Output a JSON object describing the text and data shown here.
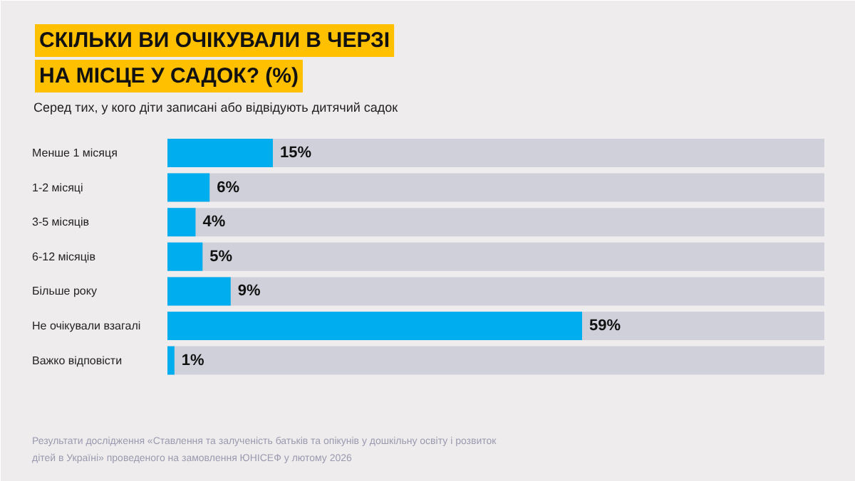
{
  "chart_data": {
    "type": "bar",
    "orientation": "horizontal",
    "title": "СКІЛЬКИ ВИ ОЧІКУВАЛИ В ЧЕРЗІ\nНА МІСЦЕ У САДОК? (%)",
    "subtitle": "Серед тих, у кого діти записані або відвідують дитячий садок",
    "categories": [
      "Менше 1 місяця",
      "1-2 місяці",
      "3-5 місяців",
      "6-12 місяців",
      "Більше року",
      "Не очікували взагалі",
      "Важко відповісти"
    ],
    "values": [
      15,
      6,
      4,
      5,
      9,
      59,
      1
    ],
    "value_labels": [
      "15%",
      "6%",
      "4%",
      "5%",
      "9%",
      "59%",
      "1%"
    ],
    "color": "#00aeef",
    "tick_labels": false,
    "annotations": [
      "Результати дослідження «Ставлення та залученість батьків та опікунів у дошкільну освіту і розвиток\nдітей в Україні» проведеного на замовлення ЮНІСЕФ у лютому 2026"
    ]
  }
}
